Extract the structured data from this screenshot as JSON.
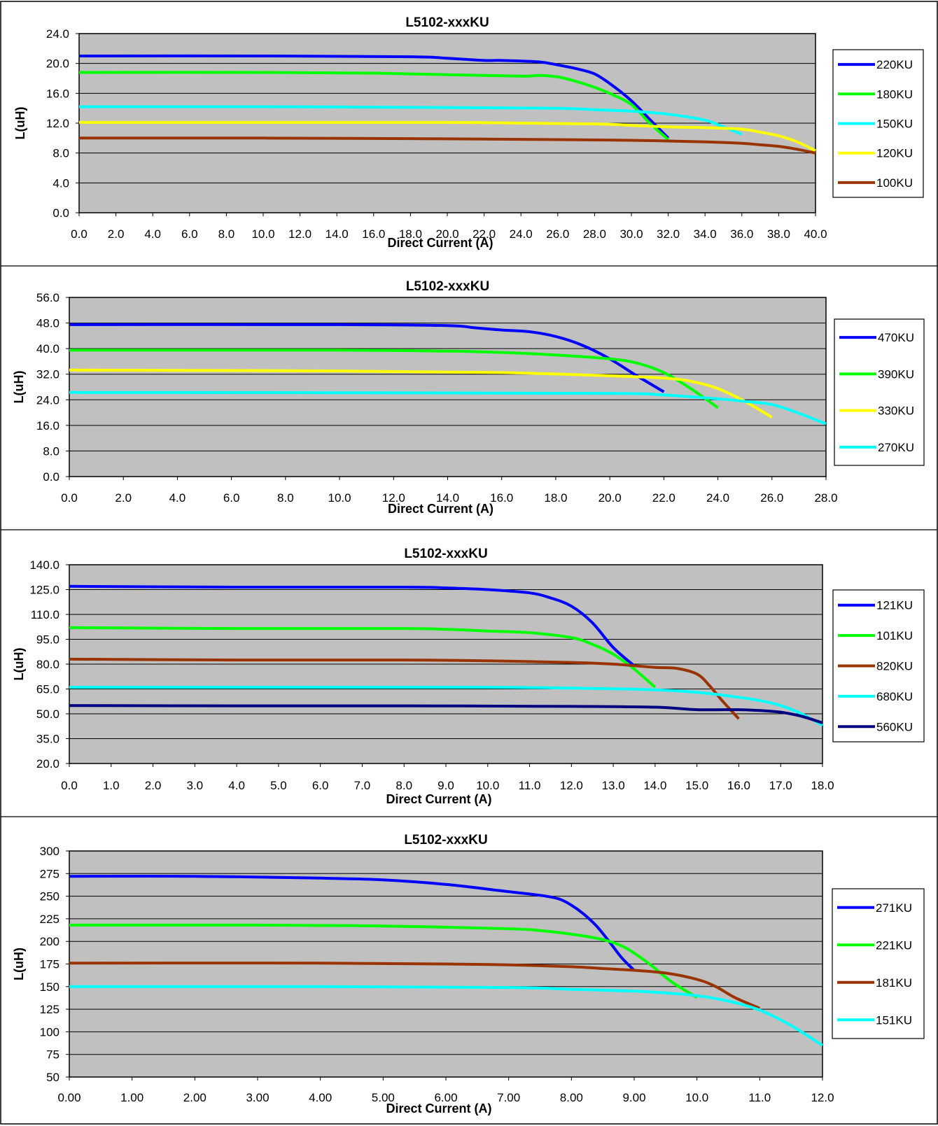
{
  "chart_data": [
    {
      "type": "line",
      "title": "L5102-xxxKU",
      "xlabel": "Direct  Current (A)",
      "ylabel": "L(uH)",
      "xlim": [
        0,
        40
      ],
      "ylim": [
        0,
        24
      ],
      "xticks": [
        "0.0",
        "2.0",
        "4.0",
        "6.0",
        "8.0",
        "10.0",
        "12.0",
        "14.0",
        "16.0",
        "18.0",
        "20.0",
        "22.0",
        "24.0",
        "26.0",
        "28.0",
        "30.0",
        "32.0",
        "34.0",
        "36.0",
        "38.0",
        "40.0"
      ],
      "yticks": [
        "0.0",
        "4.0",
        "8.0",
        "12.0",
        "16.0",
        "20.0",
        "24.0"
      ],
      "grid": "horizontal",
      "legend": "right",
      "series": [
        {
          "name": "220KU",
          "color": "#0000ff",
          "x": [
            0,
            10,
            18,
            20,
            22,
            23,
            25,
            26,
            27,
            28,
            29,
            30,
            31,
            32
          ],
          "y": [
            21.0,
            21.0,
            20.9,
            20.7,
            20.4,
            20.4,
            20.2,
            19.8,
            19.3,
            18.6,
            17.0,
            15.0,
            12.5,
            10.0
          ]
        },
        {
          "name": "180KU",
          "color": "#00ff00",
          "x": [
            0,
            10,
            16,
            20,
            24,
            25,
            26,
            27,
            28,
            29,
            30,
            31,
            32
          ],
          "y": [
            18.8,
            18.8,
            18.7,
            18.5,
            18.3,
            18.4,
            18.2,
            17.6,
            16.8,
            15.8,
            14.5,
            12.0,
            9.8
          ]
        },
        {
          "name": "150KU",
          "color": "#00ffff",
          "x": [
            0,
            10,
            20,
            26,
            28,
            30,
            32,
            34,
            35,
            36
          ],
          "y": [
            14.2,
            14.2,
            14.1,
            14.0,
            13.8,
            13.6,
            13.2,
            12.4,
            11.5,
            10.5
          ]
        },
        {
          "name": "120KU",
          "color": "#ffff00",
          "x": [
            0,
            10,
            20,
            28,
            30,
            32,
            34,
            36,
            37,
            38,
            39,
            40
          ],
          "y": [
            12.1,
            12.1,
            12.1,
            11.9,
            11.7,
            11.5,
            11.4,
            11.2,
            10.8,
            10.3,
            9.5,
            8.3
          ]
        },
        {
          "name": "100KU",
          "color": "#993300",
          "x": [
            0,
            10,
            20,
            26,
            30,
            34,
            36,
            37,
            38,
            39,
            40
          ],
          "y": [
            10.0,
            10.0,
            9.9,
            9.8,
            9.7,
            9.5,
            9.3,
            9.1,
            8.9,
            8.5,
            8.0
          ]
        }
      ]
    },
    {
      "type": "line",
      "title": "L5102-xxxKU",
      "xlabel": "Direct  Current (A)",
      "ylabel": "L(uH)",
      "xlim": [
        0,
        28
      ],
      "ylim": [
        0,
        56
      ],
      "xticks": [
        "0.0",
        "2.0",
        "4.0",
        "6.0",
        "8.0",
        "10.0",
        "12.0",
        "14.0",
        "16.0",
        "18.0",
        "20.0",
        "22.0",
        "24.0",
        "26.0",
        "28.0"
      ],
      "yticks": [
        "0.0",
        "8.0",
        "16.0",
        "24.0",
        "32.0",
        "40.0",
        "48.0",
        "56.0"
      ],
      "grid": "horizontal",
      "legend": "right",
      "series": [
        {
          "name": "470KU",
          "color": "#0000ff",
          "x": [
            0,
            10,
            14,
            15,
            16,
            17,
            18,
            19,
            20,
            21,
            22
          ],
          "y": [
            47.5,
            47.5,
            47.2,
            46.5,
            45.8,
            45.3,
            43.8,
            41.0,
            36.8,
            31.5,
            26.5
          ]
        },
        {
          "name": "390KU",
          "color": "#00ff00",
          "x": [
            0,
            10,
            14,
            16,
            18,
            20,
            21,
            22,
            23,
            24
          ],
          "y": [
            39.5,
            39.5,
            39.2,
            38.8,
            38.0,
            36.8,
            35.5,
            32.5,
            27.5,
            21.5
          ]
        },
        {
          "name": "330KU",
          "color": "#ffff00",
          "x": [
            0,
            10,
            16,
            20,
            22,
            23,
            24,
            25,
            26
          ],
          "y": [
            33.3,
            33.0,
            32.5,
            31.5,
            30.8,
            29.8,
            27.5,
            23.5,
            18.5
          ]
        },
        {
          "name": "270KU",
          "color": "#00ffff",
          "x": [
            0,
            10,
            20,
            22,
            24,
            25,
            26,
            27,
            28
          ],
          "y": [
            26.3,
            26.2,
            26.0,
            25.5,
            24.3,
            23.5,
            22.5,
            19.8,
            16.5
          ]
        }
      ]
    },
    {
      "type": "line",
      "title": "L5102-xxxKU",
      "xlabel": "Direct  Current (A)",
      "ylabel": "L(uH)",
      "xlim": [
        0,
        18
      ],
      "ylim": [
        20,
        140
      ],
      "xticks": [
        "0.0",
        "1.0",
        "2.0",
        "3.0",
        "4.0",
        "5.0",
        "6.0",
        "7.0",
        "8.0",
        "9.0",
        "10.0",
        "11.0",
        "12.0",
        "13.0",
        "14.0",
        "15.0",
        "16.0",
        "17.0",
        "18.0"
      ],
      "yticks": [
        "20.0",
        "35.0",
        "50.0",
        "65.0",
        "80.0",
        "95.0",
        "110.0",
        "125.0",
        "140.0"
      ],
      "grid": "horizontal",
      "legend": "right",
      "series": [
        {
          "name": "121KU",
          "color": "#0000ff",
          "x": [
            0,
            4,
            8,
            9,
            10,
            11,
            11.5,
            12,
            12.5,
            13,
            13.5
          ],
          "y": [
            127,
            126.5,
            126.5,
            126,
            125,
            123,
            120,
            115,
            105,
            90,
            79
          ]
        },
        {
          "name": "101KU",
          "color": "#00ff00",
          "x": [
            0,
            4,
            8,
            9,
            10,
            11,
            12,
            12.5,
            13,
            13.5,
            14
          ],
          "y": [
            102,
            101.5,
            101.5,
            101,
            100,
            99,
            96,
            92,
            86,
            77,
            66
          ]
        },
        {
          "name": "820KU",
          "color": "#993300",
          "x": [
            0,
            4,
            8,
            10,
            12,
            13,
            14,
            14.5,
            15,
            15.3,
            15.6,
            16
          ],
          "y": [
            83,
            82.5,
            82.5,
            82,
            81,
            80,
            78,
            77.5,
            74,
            67,
            58,
            47
          ]
        },
        {
          "name": "680KU",
          "color": "#00ffff",
          "x": [
            0,
            6,
            10,
            12,
            14,
            15,
            16,
            16.5,
            17,
            17.5,
            18
          ],
          "y": [
            66,
            66,
            66,
            65.5,
            64.5,
            63,
            60,
            58,
            55,
            50,
            43
          ]
        },
        {
          "name": "560KU",
          "color": "#000080",
          "x": [
            0,
            4,
            8,
            12,
            14,
            15,
            16,
            16.5,
            17,
            17.5,
            18
          ],
          "y": [
            55,
            54.8,
            54.8,
            54.5,
            54,
            52.5,
            52.5,
            52,
            51,
            48.5,
            44.5
          ]
        }
      ]
    },
    {
      "type": "line",
      "title": "L5102-xxxKU",
      "xlabel": "Direct  Current (A)",
      "ylabel": "L(uH)",
      "xlim": [
        0,
        12
      ],
      "ylim": [
        50,
        300
      ],
      "xticks": [
        "0.00",
        "1.00",
        "2.00",
        "3.00",
        "4.00",
        "5.00",
        "6.00",
        "7.00",
        "8.00",
        "9.00",
        "10.0",
        "11.0",
        "12.0"
      ],
      "yticks": [
        "50",
        "75",
        "100",
        "125",
        "150",
        "175",
        "200",
        "225",
        "250",
        "275",
        "300"
      ],
      "grid": "horizontal",
      "legend": "right",
      "series": [
        {
          "name": "271KU",
          "color": "#0000ff",
          "x": [
            0,
            2,
            4,
            5,
            6,
            7,
            7.5,
            7.8,
            8,
            8.2,
            8.4,
            8.6,
            8.8,
            9
          ],
          "y": [
            272,
            272,
            270,
            268,
            263,
            255,
            251,
            247,
            240,
            230,
            217,
            200,
            182,
            168
          ]
        },
        {
          "name": "221KU",
          "color": "#00ff00",
          "x": [
            0,
            3,
            5,
            7,
            7.5,
            8,
            8.5,
            8.8,
            9,
            9.3,
            9.6,
            10
          ],
          "y": [
            218,
            218,
            217,
            214,
            212,
            208,
            202,
            195,
            187,
            172,
            155,
            138
          ]
        },
        {
          "name": "181KU",
          "color": "#993300",
          "x": [
            0,
            4,
            6,
            7,
            8,
            8.5,
            9,
            9.5,
            10,
            10.3,
            10.6,
            11
          ],
          "y": [
            176,
            176,
            175,
            174,
            172,
            170,
            168,
            165,
            158,
            150,
            138,
            126
          ]
        },
        {
          "name": "151KU",
          "color": "#00ffff",
          "x": [
            0,
            4,
            7,
            8,
            9,
            9.5,
            10,
            10.5,
            11,
            11.5,
            12
          ],
          "y": [
            150,
            150,
            149,
            147,
            145,
            143,
            140,
            134,
            124,
            107,
            85
          ]
        }
      ]
    }
  ]
}
